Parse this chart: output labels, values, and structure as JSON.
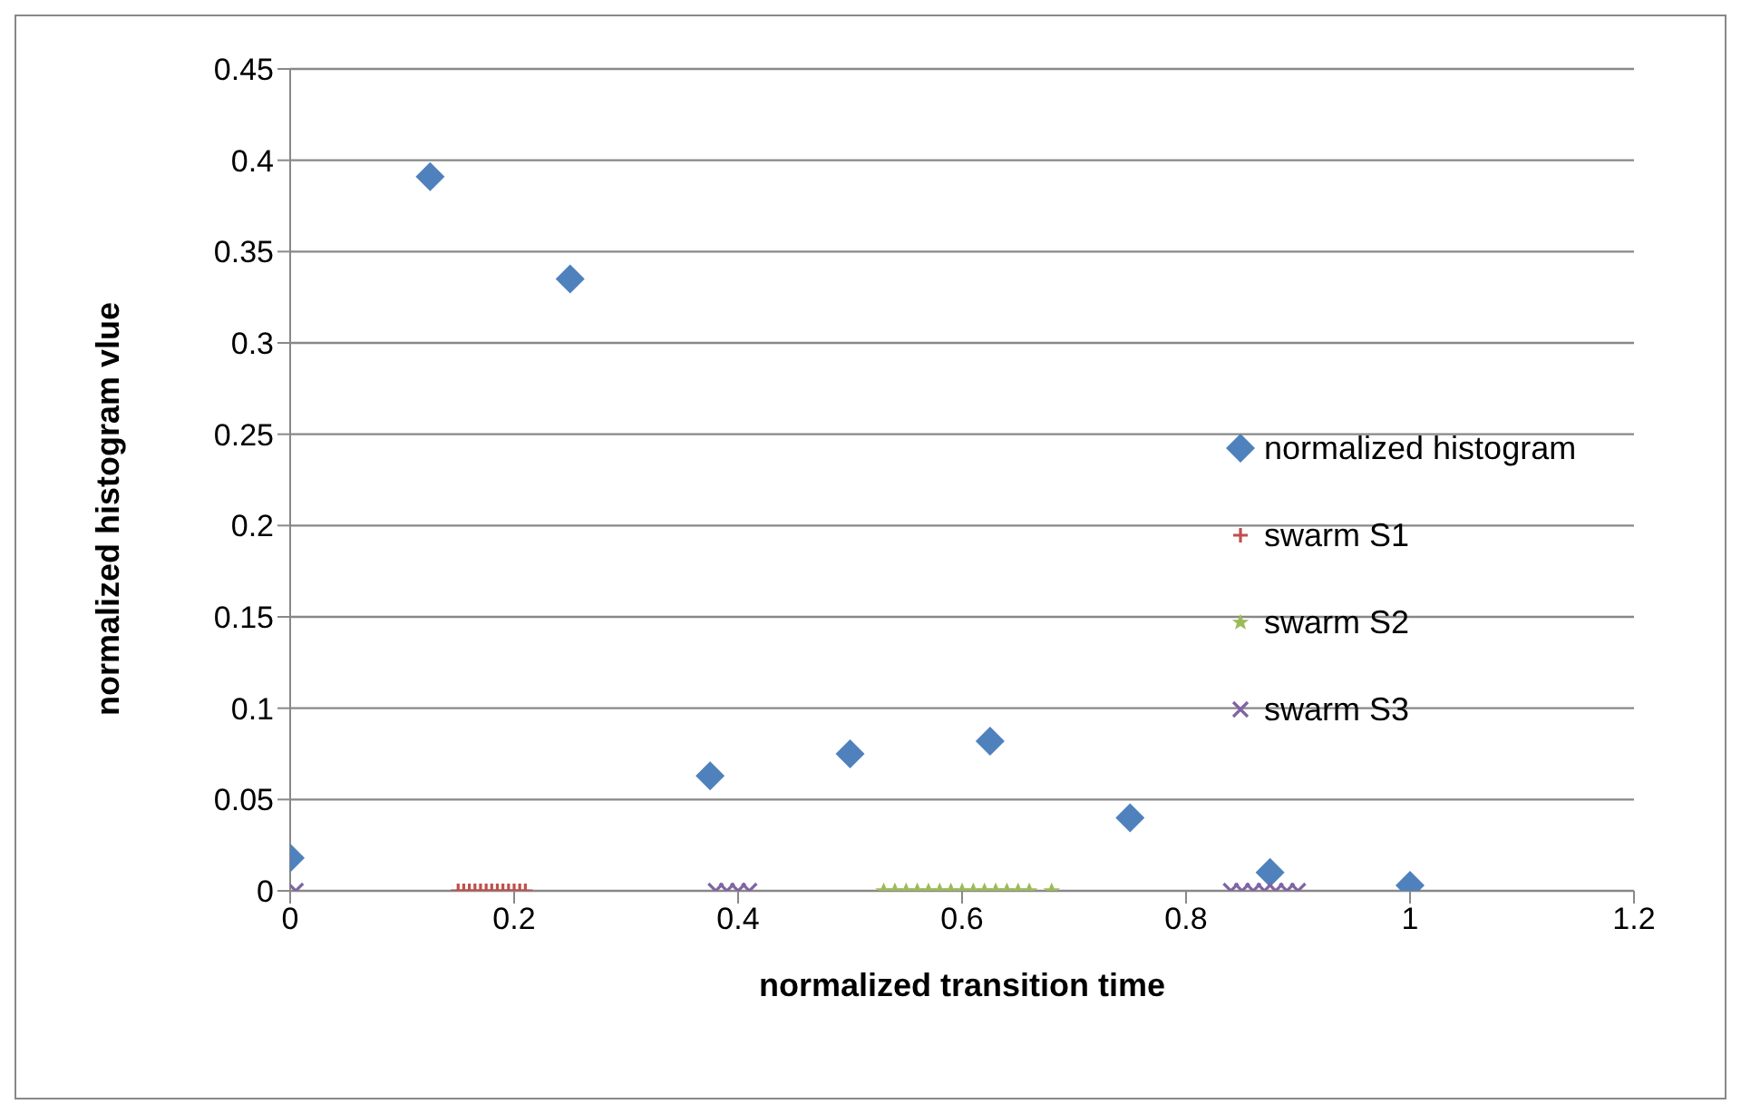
{
  "chart_data": {
    "type": "scatter",
    "xlabel": "normalized transition time",
    "ylabel": "normalized histogram vlue",
    "xlim": [
      0,
      1.2
    ],
    "xticks": [
      0,
      0.2,
      0.4,
      0.6,
      0.8,
      1,
      1.2
    ],
    "ylim": [
      0,
      0.45
    ],
    "yticks": [
      0,
      0.05,
      0.1,
      0.15,
      0.2,
      0.25,
      0.3,
      0.35,
      0.4,
      0.45
    ],
    "grid": "y",
    "legend": "right",
    "series": [
      {
        "name": "normalized histogram",
        "color": "#4f81bd",
        "marker": "diamond",
        "x": [
          0,
          0.125,
          0.25,
          0.375,
          0.5,
          0.625,
          0.75,
          0.875,
          1
        ],
        "values": [
          0.018,
          0.391,
          0.335,
          0.063,
          0.075,
          0.082,
          0.04,
          0.01,
          0.003
        ]
      },
      {
        "name": "swarm S1",
        "color": "#c0504d",
        "marker": "cross",
        "x": [
          0.15,
          0.155,
          0.16,
          0.165,
          0.17,
          0.175,
          0.18,
          0.185,
          0.19,
          0.195,
          0.2,
          0.205,
          0.21
        ],
        "values": [
          0,
          0,
          0,
          0,
          0,
          0,
          0,
          0,
          0,
          0,
          0,
          0,
          0
        ]
      },
      {
        "name": "swarm S2",
        "color": "#9bbb59",
        "marker": "star",
        "x": [
          0.53,
          0.54,
          0.55,
          0.56,
          0.57,
          0.58,
          0.59,
          0.6,
          0.61,
          0.62,
          0.63,
          0.64,
          0.65,
          0.66,
          0.68
        ],
        "values": [
          0,
          0,
          0,
          0,
          0,
          0,
          0,
          0,
          0,
          0,
          0,
          0,
          0,
          0,
          0
        ]
      },
      {
        "name": "swarm S3",
        "color": "#8064a2",
        "marker": "x",
        "x": [
          0.005,
          0.38,
          0.39,
          0.4,
          0.41,
          0.84,
          0.85,
          0.86,
          0.87,
          0.88,
          0.89,
          0.9
        ],
        "values": [
          0,
          0,
          0,
          0,
          0,
          0,
          0,
          0,
          0,
          0,
          0,
          0
        ]
      }
    ]
  }
}
